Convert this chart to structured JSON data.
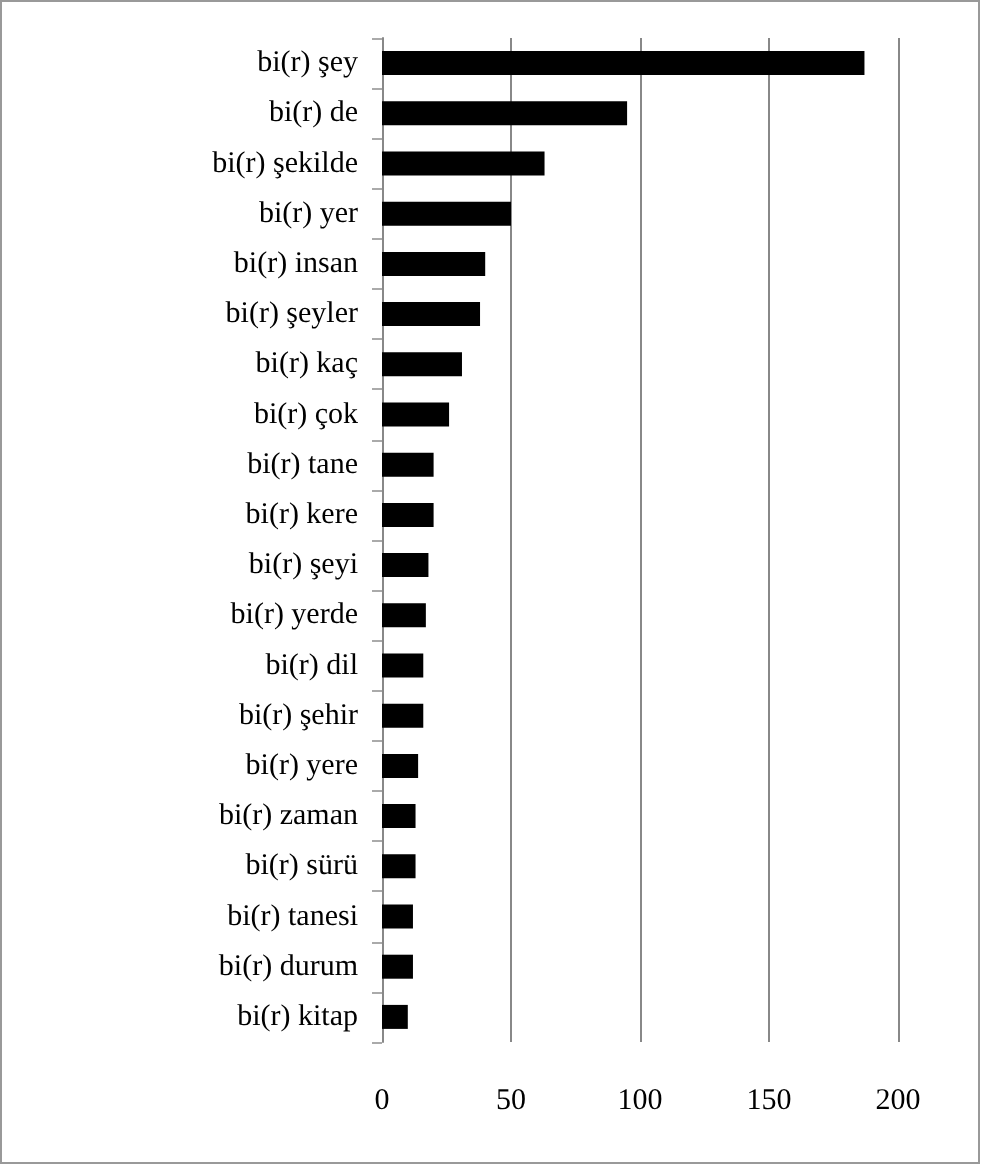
{
  "chart_data": {
    "type": "bar",
    "orientation": "horizontal",
    "categories": [
      "bi(r) şey",
      "bi(r) de",
      "bi(r) şekilde",
      "bi(r) yer",
      "bi(r) insan",
      "bi(r) şeyler",
      "bi(r) kaç",
      "bi(r) çok",
      "bi(r) tane",
      "bi(r) kere",
      "bi(r) şeyi",
      "bi(r) yerde",
      "bi(r) dil",
      "bi(r) şehir",
      "bi(r) yere",
      "bi(r) zaman",
      "bi(r) sürü",
      "bi(r) tanesi",
      "bi(r) durum",
      "bi(r) kitap"
    ],
    "values": [
      187,
      95,
      63,
      50,
      40,
      38,
      31,
      26,
      20,
      20,
      18,
      17,
      16,
      16,
      14,
      13,
      13,
      12,
      12,
      10
    ],
    "color": "#000000",
    "xlim": [
      0,
      200
    ],
    "xticks": [
      0,
      50,
      100,
      150,
      200
    ],
    "grid": "x"
  }
}
